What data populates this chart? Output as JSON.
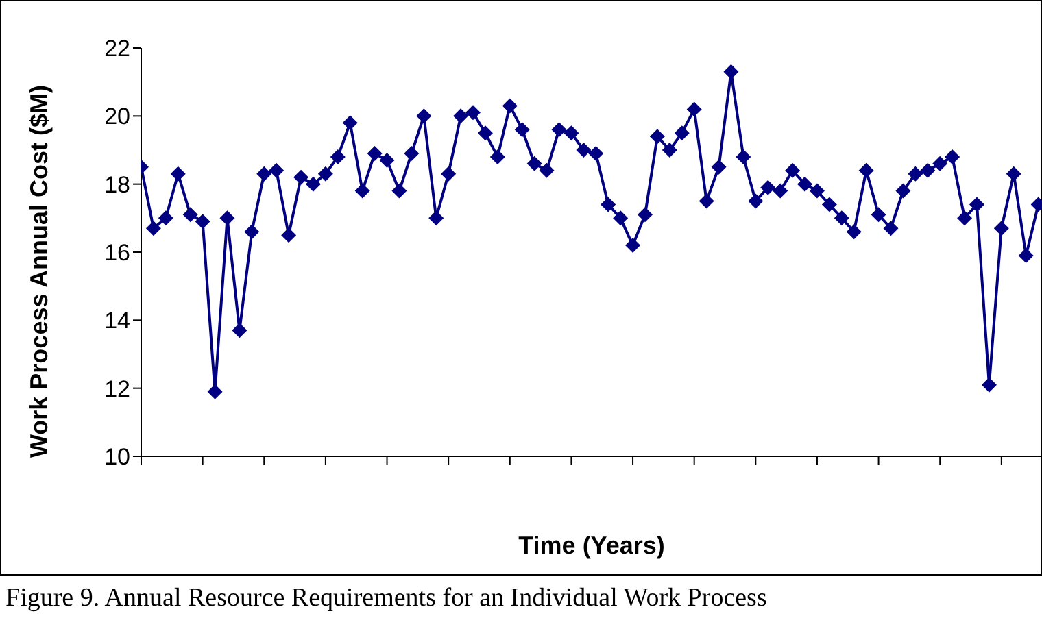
{
  "chart_data": {
    "type": "line",
    "xlabel": "Time (Years)",
    "ylabel": "Work Process Annual Cost ($M)",
    "categories": [
      null,
      null,
      null,
      null,
      null,
      null,
      null,
      null,
      null,
      null,
      null,
      null,
      null,
      null,
      null,
      null,
      null,
      null,
      null,
      null,
      null,
      null,
      null,
      null,
      null,
      null,
      null,
      null,
      null,
      null,
      null,
      null,
      null,
      null,
      null,
      null,
      null,
      null,
      null,
      null,
      null,
      null,
      null,
      null,
      null,
      null,
      null,
      null,
      null,
      null,
      null,
      null,
      null,
      null,
      null,
      null,
      null,
      null,
      null,
      null,
      null,
      null,
      null,
      null,
      null,
      null,
      null,
      null,
      null,
      null,
      null,
      null,
      null,
      null
    ],
    "series": [
      {
        "color": "#000080",
        "values": [
          18.5,
          16.7,
          17.0,
          18.3,
          17.1,
          16.9,
          11.9,
          17.0,
          13.7,
          16.6,
          18.3,
          18.4,
          16.5,
          18.2,
          18.0,
          18.3,
          18.8,
          19.8,
          17.8,
          18.9,
          18.7,
          17.8,
          18.9,
          20.0,
          17.0,
          18.3,
          20.0,
          20.1,
          19.5,
          18.8,
          20.3,
          19.6,
          18.6,
          18.4,
          19.6,
          19.5,
          19.0,
          18.9,
          17.4,
          17.0,
          16.2,
          17.1,
          19.4,
          19.0,
          19.5,
          20.2,
          17.5,
          18.5,
          21.3,
          18.8,
          17.5,
          17.9,
          17.8,
          18.4,
          18.0,
          17.8,
          17.4,
          17.0,
          16.6,
          18.4,
          17.1,
          16.7,
          17.8,
          18.3,
          18.4,
          18.6,
          18.8,
          17.0,
          17.4,
          12.1,
          16.7,
          18.3,
          15.9,
          17.4
        ]
      }
    ],
    "ylim": [
      10,
      22
    ],
    "yticks": [
      10,
      12,
      14,
      16,
      18,
      20,
      22
    ],
    "grid": false,
    "legend": false,
    "marker": "diamond",
    "line_style": "solid",
    "annotations": [
      "Figure 9.  Annual Resource Requirements for an Individual Work Process"
    ]
  }
}
